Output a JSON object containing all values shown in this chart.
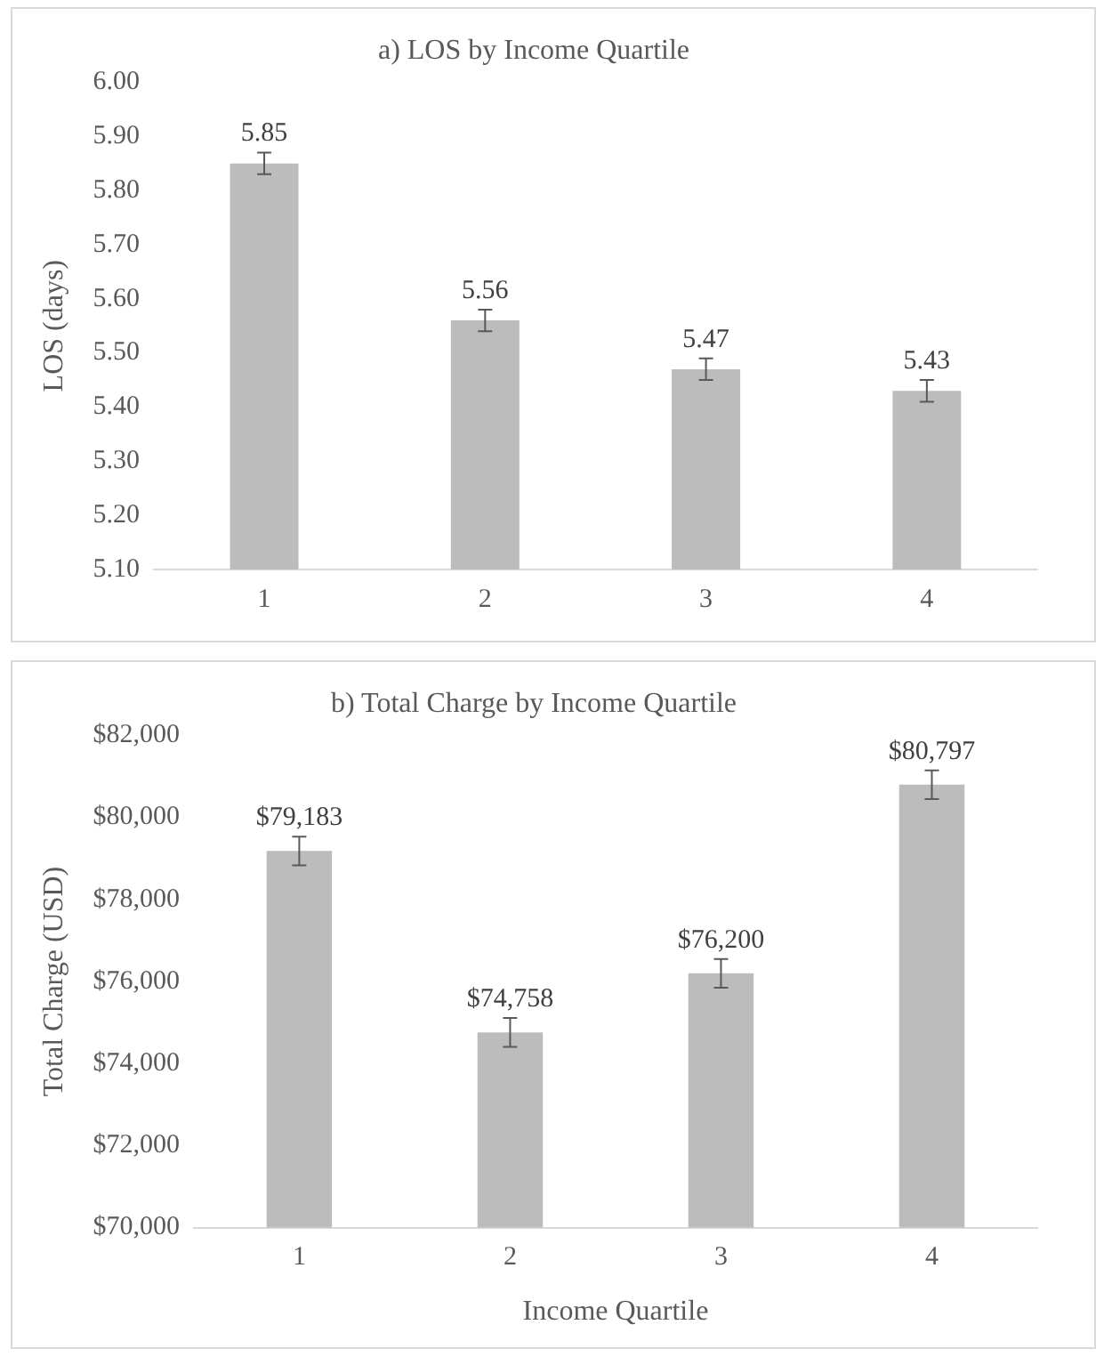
{
  "chart_data": [
    {
      "type": "bar",
      "title": "a) LOS by Income Quartile",
      "ylabel": "LOS (days)",
      "categories": [
        "1",
        "2",
        "3",
        "4"
      ],
      "values": [
        5.85,
        5.56,
        5.47,
        5.43
      ],
      "errors": [
        0.02,
        0.02,
        0.02,
        0.02
      ],
      "value_labels": [
        "5.85",
        "5.56",
        "5.47",
        "5.43"
      ],
      "color": "#bcbcbc",
      "ylim": [
        5.1,
        6.0
      ],
      "yticks": [
        {
          "value": 5.1,
          "label": "5.10"
        },
        {
          "value": 5.2,
          "label": "5.20"
        },
        {
          "value": 5.3,
          "label": "5.30"
        },
        {
          "value": 5.4,
          "label": "5.40"
        },
        {
          "value": 5.5,
          "label": "5.50"
        },
        {
          "value": 5.6,
          "label": "5.60"
        },
        {
          "value": 5.7,
          "label": "5.70"
        },
        {
          "value": 5.8,
          "label": "5.80"
        },
        {
          "value": 5.9,
          "label": "5.90"
        },
        {
          "value": 6.0,
          "label": "6.00"
        }
      ],
      "grid": false,
      "legend": false
    },
    {
      "type": "bar",
      "title": "b) Total Charge by Income Quartile",
      "xlabel": "Income Quartile",
      "ylabel": "Total Charge (USD)",
      "categories": [
        "1",
        "2",
        "3",
        "4"
      ],
      "values": [
        79183,
        74758,
        76200,
        80797
      ],
      "errors": [
        350,
        350,
        350,
        350
      ],
      "value_labels": [
        "$79,183",
        "$74,758",
        "$76,200",
        "$80,797"
      ],
      "color": "#bcbcbc",
      "ylim": [
        70000,
        82000
      ],
      "yticks": [
        {
          "value": 70000,
          "label": "$70,000"
        },
        {
          "value": 72000,
          "label": "$72,000"
        },
        {
          "value": 74000,
          "label": "$74,000"
        },
        {
          "value": 76000,
          "label": "$76,000"
        },
        {
          "value": 78000,
          "label": "$78,000"
        },
        {
          "value": 80000,
          "label": "$80,000"
        },
        {
          "value": 82000,
          "label": "$82,000"
        }
      ],
      "grid": false,
      "legend": false
    }
  ]
}
